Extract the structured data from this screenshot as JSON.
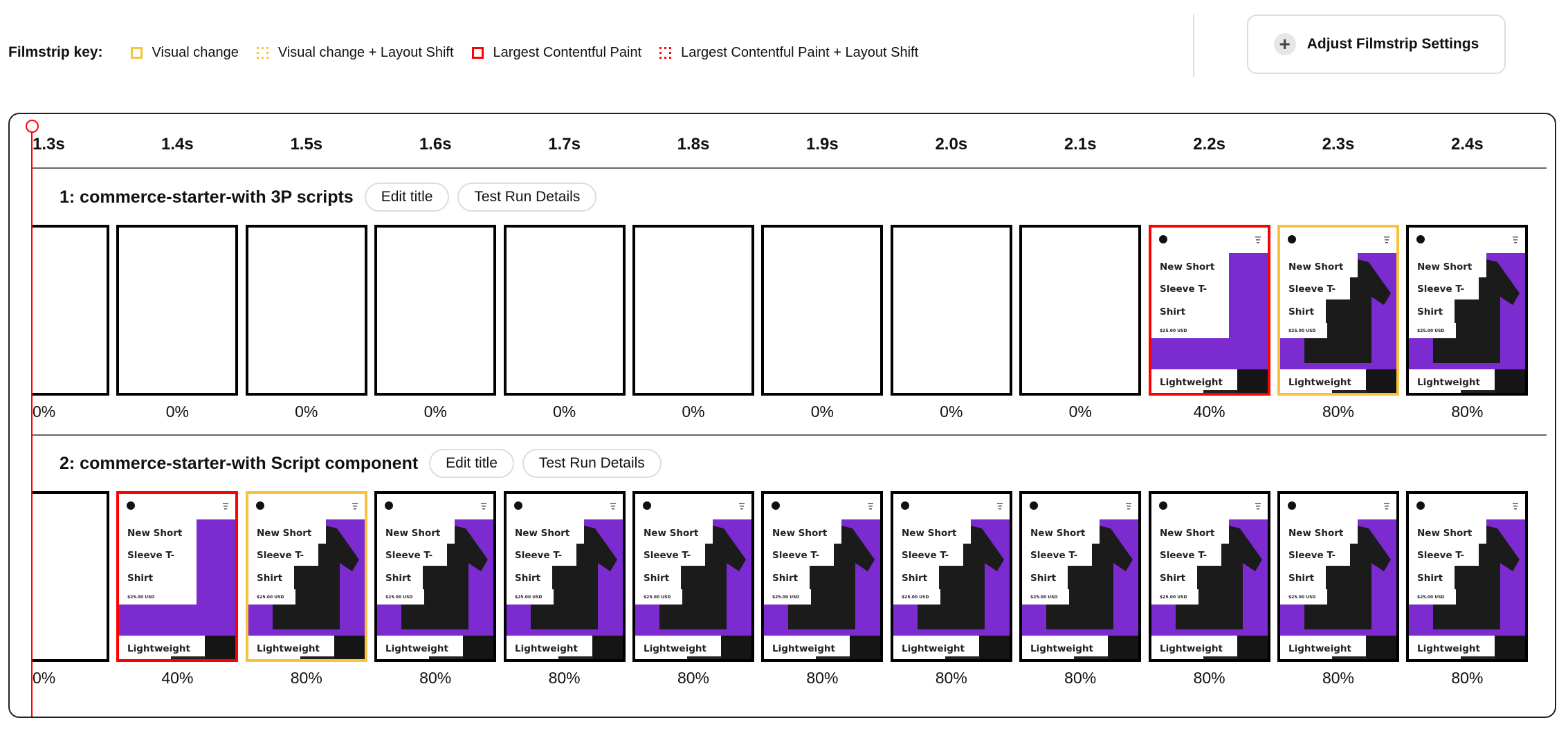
{
  "legend": {
    "title": "Filmstrip key:",
    "items": [
      {
        "label": "Visual change",
        "color": "#f9c23c",
        "style": "solid"
      },
      {
        "label": "Visual change + Layout Shift",
        "color": "#f9c23c",
        "style": "dotted"
      },
      {
        "label": "Largest Contentful Paint",
        "color": "#ff0000",
        "style": "solid"
      },
      {
        "label": "Largest Contentful Paint + Layout Shift",
        "color": "#ff0000",
        "style": "dotted"
      }
    ]
  },
  "adjust_button": {
    "label": "Adjust Filmstrip Settings",
    "icon": "plus-icon"
  },
  "times": [
    "1.3s",
    "1.4s",
    "1.5s",
    "1.6s",
    "1.7s",
    "1.8s",
    "1.9s",
    "2.0s",
    "2.1s",
    "2.2s",
    "2.3s",
    "2.4s"
  ],
  "thumbnail": {
    "line1": "New Short",
    "line2": "Sleeve T-",
    "line3": "Shirt",
    "price": "$25.00 USD",
    "tag": "Lightweight",
    "purple": "#7b2bd0"
  },
  "colors": {
    "none": "#000000",
    "visual": "#f9c23c",
    "lcp": "#ff0000"
  },
  "rows": [
    {
      "title": "1: commerce-starter-with 3P scripts",
      "edit_label": "Edit title",
      "details_label": "Test Run Details",
      "frames": [
        {
          "state": "none",
          "thumb": "blank",
          "progress": "0%"
        },
        {
          "state": "none",
          "thumb": "blank",
          "progress": "0%"
        },
        {
          "state": "none",
          "thumb": "blank",
          "progress": "0%"
        },
        {
          "state": "none",
          "thumb": "blank",
          "progress": "0%"
        },
        {
          "state": "none",
          "thumb": "blank",
          "progress": "0%"
        },
        {
          "state": "none",
          "thumb": "blank",
          "progress": "0%"
        },
        {
          "state": "none",
          "thumb": "blank",
          "progress": "0%"
        },
        {
          "state": "none",
          "thumb": "blank",
          "progress": "0%"
        },
        {
          "state": "none",
          "thumb": "blank",
          "progress": "0%"
        },
        {
          "state": "lcp",
          "thumb": "partial",
          "progress": "40%"
        },
        {
          "state": "visual",
          "thumb": "full",
          "progress": "80%"
        },
        {
          "state": "none",
          "thumb": "full",
          "progress": "80%"
        }
      ]
    },
    {
      "title": "2: commerce-starter-with Script component",
      "edit_label": "Edit title",
      "details_label": "Test Run Details",
      "frames": [
        {
          "state": "none",
          "thumb": "blank",
          "progress": "0%"
        },
        {
          "state": "lcp",
          "thumb": "partial",
          "progress": "40%"
        },
        {
          "state": "visual",
          "thumb": "full",
          "progress": "80%"
        },
        {
          "state": "none",
          "thumb": "full",
          "progress": "80%"
        },
        {
          "state": "none",
          "thumb": "full",
          "progress": "80%"
        },
        {
          "state": "none",
          "thumb": "full",
          "progress": "80%"
        },
        {
          "state": "none",
          "thumb": "full",
          "progress": "80%"
        },
        {
          "state": "none",
          "thumb": "full",
          "progress": "80%"
        },
        {
          "state": "none",
          "thumb": "full",
          "progress": "80%"
        },
        {
          "state": "none",
          "thumb": "full",
          "progress": "80%"
        },
        {
          "state": "none",
          "thumb": "full",
          "progress": "80%"
        },
        {
          "state": "none",
          "thumb": "full",
          "progress": "80%"
        }
      ]
    }
  ]
}
